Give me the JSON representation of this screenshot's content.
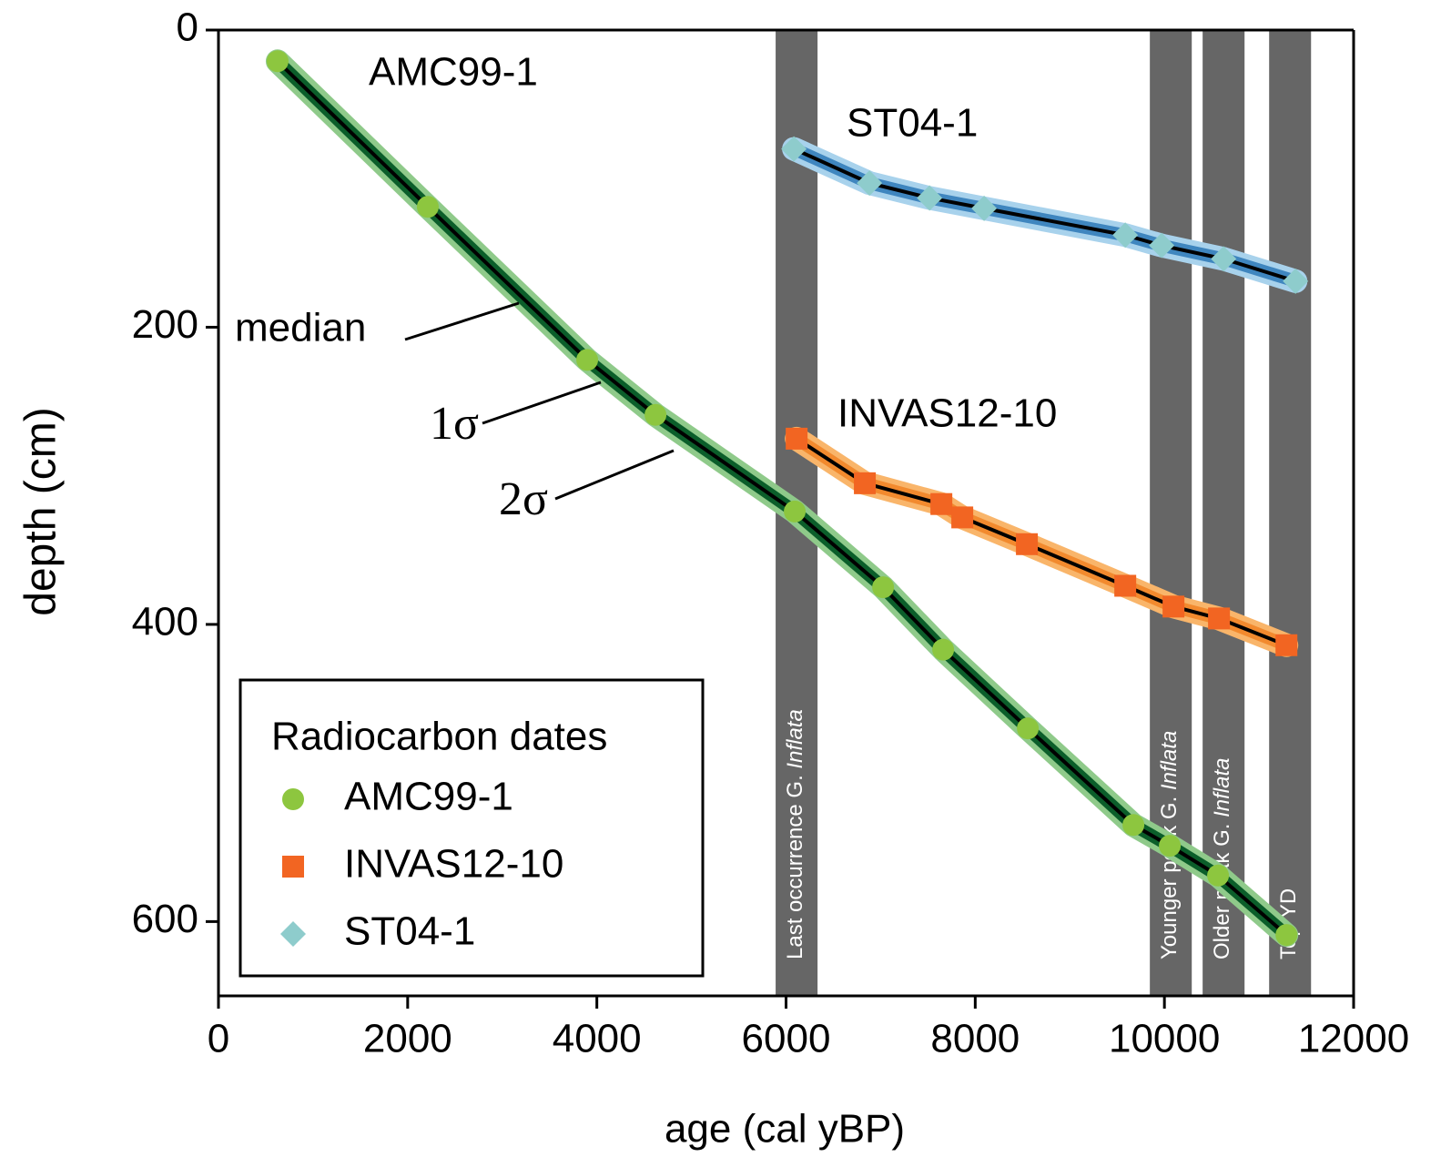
{
  "chart_data": {
    "type": "line",
    "xlabel": "age (cal yBP)",
    "ylabel": "depth (cm)",
    "xlim": [
      0,
      12000
    ],
    "xticks": [
      0,
      2000,
      4000,
      6000,
      8000,
      10000,
      12000
    ],
    "ylim": [
      0,
      650
    ],
    "yticks": [
      0,
      200,
      400,
      600
    ],
    "y_inverted": true,
    "legend_title": "Radiocarbon dates",
    "legend": "lower left",
    "series": [
      {
        "name": "AMC99-1",
        "marker": "circle",
        "color": "#8dc63f",
        "band_color_1s": "#0b5e2a",
        "band_color_2s": "#8fca8a",
        "x": [
          625,
          2213,
          3898,
          4620,
          6092,
          7026,
          7661,
          8556,
          9672,
          10057,
          10567,
          11290
        ],
        "values": [
          21,
          119,
          222,
          259,
          324,
          375,
          417,
          470,
          535,
          549,
          569,
          609
        ]
      },
      {
        "name": "INVAS12-10",
        "marker": "square",
        "color": "#f26522",
        "band_color_1s": "#f28a2e",
        "band_color_2s": "#f9b56a",
        "x": [
          6112,
          6833,
          7642,
          7863,
          8546,
          9586,
          10096,
          10577,
          11290
        ],
        "values": [
          275,
          305,
          319,
          328,
          346,
          374,
          388,
          396,
          414
        ]
      },
      {
        "name": "ST04-1",
        "marker": "diamond",
        "color": "#8ecccc",
        "band_color_1s": "#3f86bf",
        "band_color_2s": "#a8d2ec",
        "x": [
          6083,
          6882,
          7517,
          8094,
          9586,
          9971,
          10626,
          11386
        ],
        "values": [
          80,
          103,
          113,
          120,
          138,
          145,
          154,
          169
        ]
      }
    ],
    "bands": [
      {
        "start": 5890,
        "end": 6333,
        "label": "Last occurrence G.",
        "label_italic": "Inflata"
      },
      {
        "start": 9846,
        "end": 10289,
        "label": "Younger peak G.",
        "label_italic": "Inflata"
      },
      {
        "start": 10404,
        "end": 10847,
        "label": "Older peak G.",
        "label_italic": "Inflata"
      },
      {
        "start": 11107,
        "end": 11550,
        "label": "Top YD"
      }
    ],
    "band_color": "#666666",
    "annotations": [
      "AMC99-1",
      "ST04-1",
      "INVAS12-10",
      "median",
      "1σ",
      "2σ"
    ]
  }
}
